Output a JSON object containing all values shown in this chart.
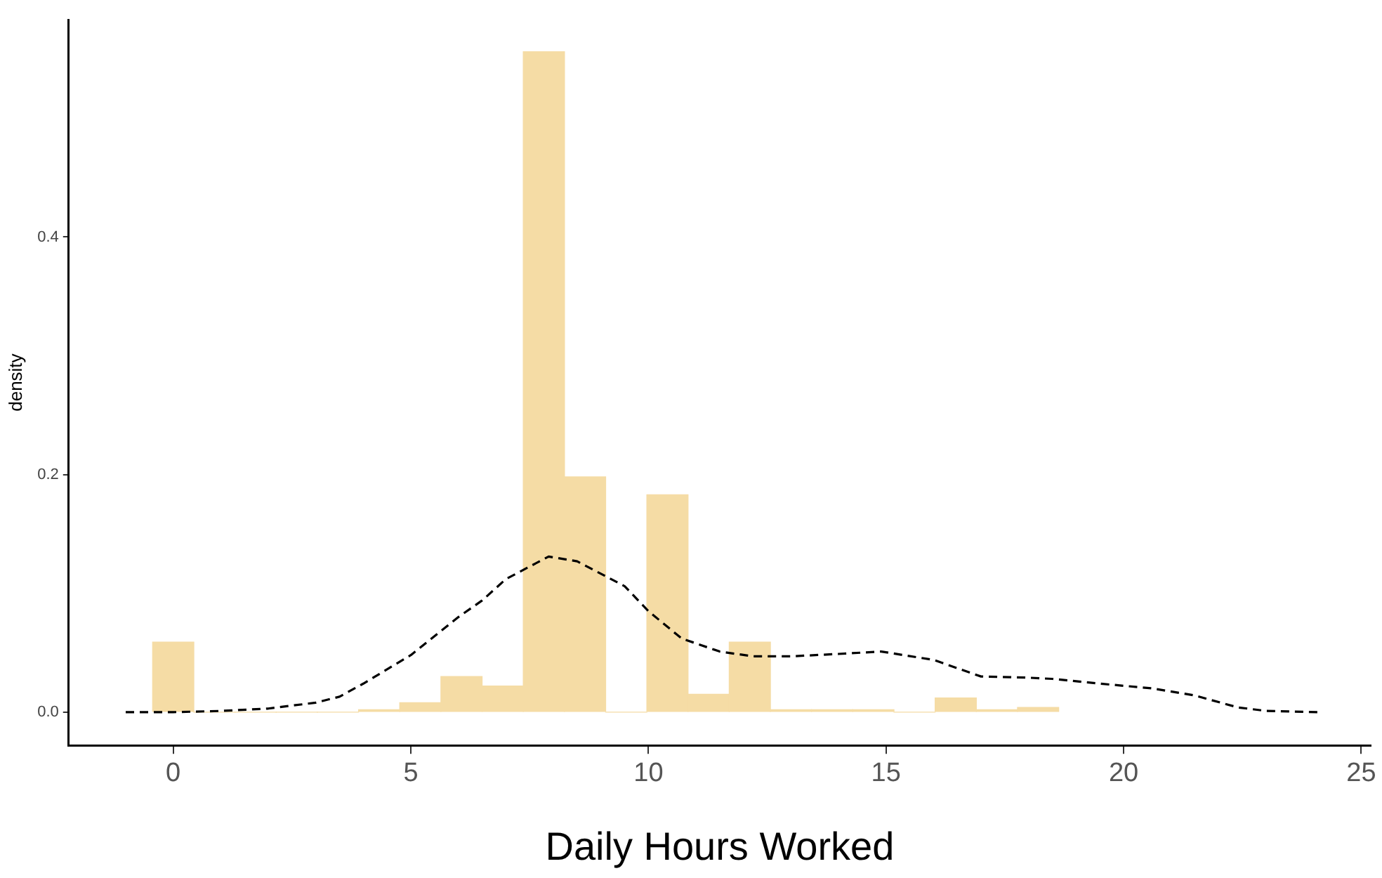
{
  "chart_data": {
    "type": "histogram",
    "xlabel": "Daily Hours Worked",
    "ylabel": "density",
    "bins": [
      -0.433,
      0.433,
      1.3,
      2.167,
      3.033,
      3.9,
      4.767,
      5.633,
      6.5,
      7.367,
      8.233,
      9.1,
      9.967,
      10.833,
      11.7,
      12.567,
      13.433,
      14.3,
      15.167,
      16.033,
      16.9,
      17.767,
      18.633
    ],
    "values": [
      0.059,
      0,
      0,
      0,
      0,
      0.002,
      0.008,
      0.03,
      0.022,
      0.556,
      0.198,
      0,
      0.183,
      0.015,
      0.059,
      0.002,
      0.002,
      0.002,
      0,
      0.012,
      0.002,
      0.004
    ],
    "color": "#f5dca5",
    "series": [
      {
        "type": "line",
        "color": "#000000",
        "line_style": "dashed",
        "marker": "none",
        "x": [
          -1,
          0,
          1,
          2,
          3,
          3.5,
          4,
          5,
          6,
          6.5,
          7,
          7.9,
          8.5,
          9.5,
          10,
          10.7,
          11.5,
          12.2,
          13,
          14,
          14.9,
          16,
          17,
          18,
          18.5,
          19.5,
          20.6,
          21.5,
          22.4,
          23,
          24.1
        ],
        "values": [
          0,
          0,
          0.001,
          0.003,
          0.008,
          0.013,
          0.024,
          0.048,
          0.08,
          0.094,
          0.112,
          0.131,
          0.127,
          0.106,
          0.085,
          0.062,
          0.051,
          0.047,
          0.047,
          0.049,
          0.051,
          0.044,
          0.03,
          0.029,
          0.028,
          0.024,
          0.02,
          0.014,
          0.004,
          0.001,
          0
        ]
      }
    ],
    "xlim": [
      -2.2,
      25.2
    ],
    "xticks": [
      0,
      5,
      10,
      15,
      20,
      25
    ],
    "ylim": [
      -0.028,
      0.583
    ],
    "yticks": [
      {
        "value": 0,
        "label": "0.0"
      },
      {
        "value": 0.2,
        "label": "0.2"
      },
      {
        "value": 0.4,
        "label": "0.4"
      }
    ],
    "grid": false,
    "legend": false
  }
}
